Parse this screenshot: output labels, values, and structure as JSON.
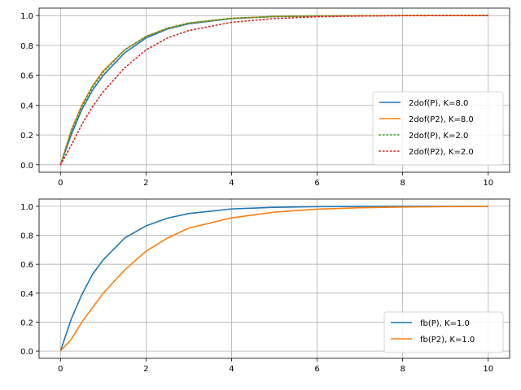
{
  "chart_data": [
    {
      "type": "line",
      "title": "",
      "xlabel": "",
      "ylabel": "",
      "xlim": [
        -0.5,
        10.5
      ],
      "ylim": [
        -0.05,
        1.05
      ],
      "grid": true,
      "legend_position": "lower-right",
      "xticks": [
        "0",
        "2",
        "4",
        "6",
        "8",
        "10"
      ],
      "yticks": [
        "0.0",
        "0.2",
        "0.4",
        "0.6",
        "0.8",
        "1.0"
      ],
      "x": [
        0,
        0.25,
        0.5,
        0.75,
        1,
        1.5,
        2,
        2.5,
        3,
        4,
        5,
        6,
        7,
        8,
        9,
        10
      ],
      "series": [
        {
          "name": "2dof(P), K=8.0",
          "color": "#1f77b4",
          "style": "solid",
          "values": [
            0,
            0.2,
            0.37,
            0.5,
            0.6,
            0.75,
            0.85,
            0.91,
            0.945,
            0.98,
            0.993,
            0.997,
            0.999,
            1.0,
            1.0,
            1.0
          ]
        },
        {
          "name": "2dof(P2), K=8.0",
          "color": "#ff7f0e",
          "style": "solid",
          "values": [
            0,
            0.23,
            0.4,
            0.53,
            0.63,
            0.77,
            0.86,
            0.915,
            0.95,
            0.982,
            0.994,
            0.998,
            0.999,
            1.0,
            1.0,
            1.0
          ]
        },
        {
          "name": "2dof(P), K=2.0",
          "color": "#2ca02c",
          "style": "dotted",
          "values": [
            0,
            0.22,
            0.39,
            0.52,
            0.62,
            0.77,
            0.86,
            0.915,
            0.95,
            0.982,
            0.994,
            0.998,
            0.999,
            1.0,
            1.0,
            1.0
          ]
        },
        {
          "name": "2dof(P2), K=2.0",
          "color": "#d62728",
          "style": "dotted",
          "values": [
            0,
            0.13,
            0.27,
            0.39,
            0.49,
            0.65,
            0.77,
            0.85,
            0.9,
            0.955,
            0.98,
            0.992,
            0.997,
            0.999,
            1.0,
            1.0
          ]
        }
      ]
    },
    {
      "type": "line",
      "title": "",
      "xlabel": "",
      "ylabel": "",
      "xlim": [
        -0.5,
        10.5
      ],
      "ylim": [
        -0.05,
        1.05
      ],
      "grid": true,
      "legend_position": "lower-right",
      "xticks": [
        "0",
        "2",
        "4",
        "6",
        "8",
        "10"
      ],
      "yticks": [
        "0.0",
        "0.2",
        "0.4",
        "0.6",
        "0.8",
        "1.0"
      ],
      "x": [
        0,
        0.25,
        0.5,
        0.75,
        1,
        1.5,
        2,
        2.5,
        3,
        4,
        5,
        6,
        7,
        8,
        9,
        10
      ],
      "series": [
        {
          "name": "fb(P), K=1.0",
          "color": "#1f77b4",
          "style": "solid",
          "values": [
            0,
            0.22,
            0.39,
            0.53,
            0.63,
            0.78,
            0.865,
            0.918,
            0.95,
            0.982,
            0.993,
            0.998,
            0.999,
            1.0,
            1.0,
            1.0
          ]
        },
        {
          "name": "fb(P2), K=1.0",
          "color": "#ff7f0e",
          "style": "solid",
          "values": [
            0,
            0.08,
            0.2,
            0.3,
            0.4,
            0.56,
            0.69,
            0.78,
            0.85,
            0.92,
            0.96,
            0.98,
            0.99,
            0.995,
            0.998,
            0.999
          ]
        }
      ]
    }
  ]
}
